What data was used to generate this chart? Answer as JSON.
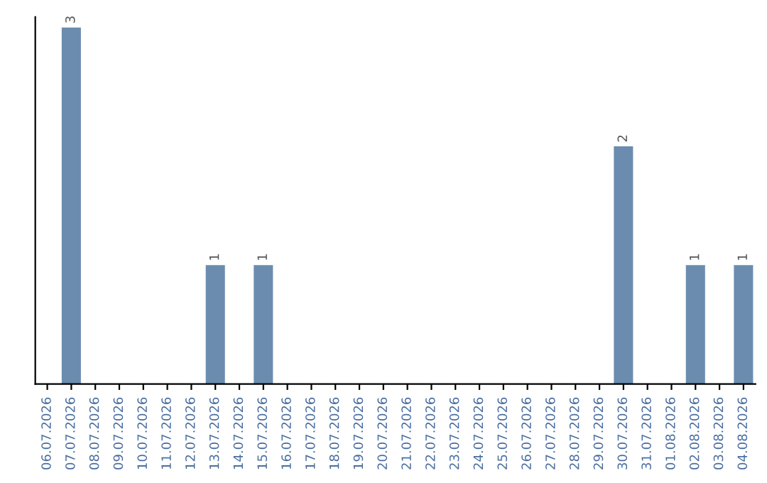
{
  "chart_data": {
    "type": "bar",
    "categories": [
      "06.07.2026",
      "07.07.2026",
      "08.07.2026",
      "09.07.2026",
      "10.07.2026",
      "11.07.2026",
      "12.07.2026",
      "13.07.2026",
      "14.07.2026",
      "15.07.2026",
      "16.07.2026",
      "17.07.2026",
      "18.07.2026",
      "19.07.2026",
      "20.07.2026",
      "21.07.2026",
      "22.07.2026",
      "23.07.2026",
      "24.07.2026",
      "25.07.2026",
      "26.07.2026",
      "27.07.2026",
      "28.07.2026",
      "29.07.2026",
      "30.07.2026",
      "31.07.2026",
      "01.08.2026",
      "02.08.2026",
      "03.08.2026",
      "04.08.2026"
    ],
    "values": [
      0,
      3,
      0,
      0,
      0,
      0,
      0,
      1,
      0,
      1,
      0,
      0,
      0,
      0,
      0,
      0,
      0,
      0,
      0,
      0,
      0,
      0,
      0,
      0,
      2,
      0,
      0,
      1,
      0,
      1
    ],
    "value_labels": [
      null,
      "3",
      null,
      null,
      null,
      null,
      null,
      "1",
      null,
      "1",
      null,
      null,
      null,
      null,
      null,
      null,
      null,
      null,
      null,
      null,
      null,
      null,
      null,
      null,
      "2",
      null,
      null,
      "1",
      null,
      "1"
    ],
    "color": "#6b8cae",
    "tick_labels": "x",
    "grid": false
  }
}
